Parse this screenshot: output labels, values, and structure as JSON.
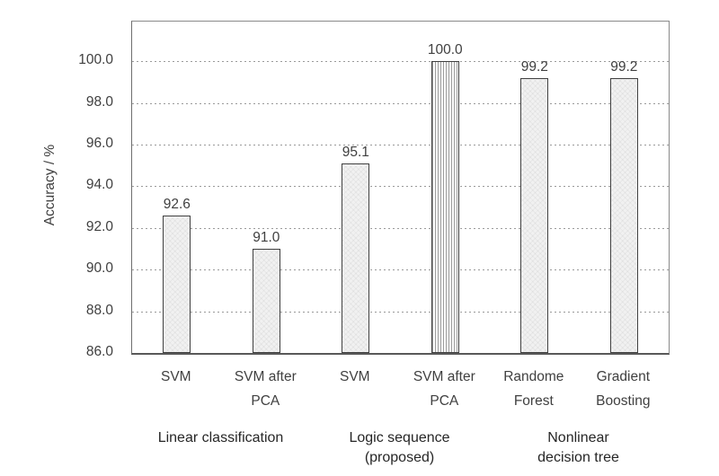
{
  "chart_data": {
    "type": "bar",
    "title": "",
    "xlabel": "",
    "ylabel": "Accuracy / %",
    "categories": [
      "SVM",
      "SVM after\nPCA",
      "SVM",
      "SVM after\nPCA",
      "Randome\nForest",
      "Gradient\nBoosting"
    ],
    "values": [
      92.6,
      91.0,
      95.1,
      100.0,
      99.2,
      99.2
    ],
    "value_labels": [
      "92.6",
      "91.0",
      "95.1",
      "100.0",
      "99.2",
      "99.2"
    ],
    "groups": [
      {
        "label": "Linear classification",
        "span": [
          0,
          1
        ]
      },
      {
        "label": "Logic sequence\n(proposed)",
        "span": [
          2,
          3
        ]
      },
      {
        "label": "Nonlinear\ndecision tree",
        "span": [
          4,
          5
        ]
      }
    ],
    "y_ticks": [
      "86.0",
      "88.0",
      "90.0",
      "92.0",
      "94.0",
      "96.0",
      "98.0",
      "100.0"
    ],
    "ylim": [
      86,
      101.9
    ],
    "grid": "horizontal-dashed",
    "legend": "none",
    "bar_styles": [
      "dot-texture",
      "dot-texture",
      "dot-texture",
      "vertical-hatch",
      "dot-texture",
      "dot-texture"
    ],
    "colors": {
      "background": "#ffffff",
      "bar_fill": "#f1f1f1",
      "bar_border": "#404040",
      "hatch_line": "#9d9d9d",
      "grid_line": "#9a9a9a",
      "text": "#404040",
      "group_text": "#262626"
    }
  }
}
